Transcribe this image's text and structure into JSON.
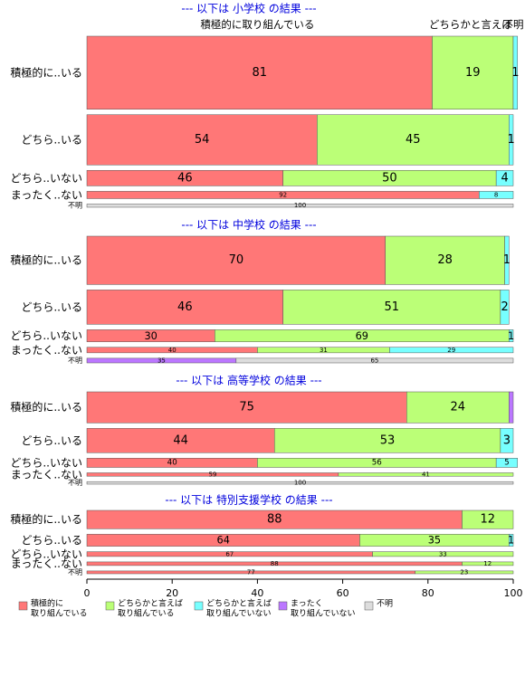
{
  "chart_data": {
    "type": "bar",
    "orientation": "horizontal",
    "stacked": true,
    "xlim": [
      0,
      100
    ],
    "x_ticks": [
      "0",
      "20",
      "40",
      "60",
      "80",
      "100"
    ],
    "top_labels": [
      {
        "text": "積極的に取り組んでいる",
        "x": 40
      },
      {
        "text": "どちらかと言えば",
        "x": 90
      },
      {
        "text": "不明",
        "x": 100
      }
    ],
    "legend": {
      "position": "bottom-left",
      "items": [
        {
          "line1": "積極的に",
          "line2": "取り組んでいる",
          "color": "#ff7777"
        },
        {
          "line1": "どちらかと言えば",
          "line2": "取り組んでいる",
          "color": "#bbff77"
        },
        {
          "line1": "どちらかと言えば",
          "line2": "取り組んでいない",
          "color": "#77ffff"
        },
        {
          "line1": "まったく",
          "line2": "取り組んでいない",
          "color": "#bb77ff"
        },
        {
          "line1": "不明",
          "line2": "",
          "color": "#dddddd"
        }
      ]
    },
    "panels": [
      {
        "title": "--- 以下は 小学校 の結果 ---",
        "rows": [
          {
            "label": "積極的に..いる",
            "values": [
              81,
              19,
              1,
              0,
              0
            ],
            "shown": [
              "81",
              "19",
              "1",
              "",
              ""
            ],
            "weight": 8
          },
          {
            "label": "どちら..いる",
            "values": [
              54,
              45,
              1,
              0,
              0
            ],
            "shown": [
              "54",
              "45",
              "1",
              "",
              ""
            ],
            "weight": 5.5
          },
          {
            "label": "どちら..いない",
            "values": [
              46,
              50,
              4,
              0,
              0
            ],
            "shown": [
              "46",
              "50",
              "4",
              "",
              ""
            ],
            "weight": 1.7
          },
          {
            "label": "まったく..ない",
            "values": [
              92,
              0,
              8,
              0,
              0
            ],
            "shown": [
              "92",
              "",
              "8",
              "",
              ""
            ],
            "weight": 0.8
          },
          {
            "label": "不明",
            "values": [
              0,
              0,
              0,
              0,
              100
            ],
            "shown": [
              "",
              "",
              "",
              "",
              "100"
            ],
            "weight": 0.35
          }
        ]
      },
      {
        "title": "--- 以下は 中学校 の結果 ---",
        "rows": [
          {
            "label": "積極的に..いる",
            "values": [
              70,
              28,
              1,
              0,
              0
            ],
            "shown": [
              "70",
              "28",
              "1",
              "",
              ""
            ],
            "weight": 5.2
          },
          {
            "label": "どちら..いる",
            "values": [
              46,
              51,
              2,
              0,
              0
            ],
            "shown": [
              "46",
              "51",
              "2",
              "",
              ""
            ],
            "weight": 3.7
          },
          {
            "label": "どちら..いない",
            "values": [
              30,
              69,
              1,
              0,
              0
            ],
            "shown": [
              "30",
              "69",
              "1",
              "",
              ""
            ],
            "weight": 1.3
          },
          {
            "label": "まったく..ない",
            "values": [
              40,
              31,
              29,
              0,
              0
            ],
            "shown": [
              "40",
              "31",
              "29",
              "",
              ""
            ],
            "weight": 0.6
          },
          {
            "label": "不明",
            "values": [
              0,
              0,
              0,
              35,
              65
            ],
            "shown": [
              "",
              "",
              "",
              "35",
              "65"
            ],
            "weight": 0.5
          }
        ]
      },
      {
        "title": "--- 以下は 高等学校 の結果 ---",
        "rows": [
          {
            "label": "積極的に..いる",
            "values": [
              75,
              24,
              0,
              1,
              0
            ],
            "shown": [
              "75",
              "24",
              "",
              "",
              ""
            ],
            "weight": 3.7
          },
          {
            "label": "どちら..いる",
            "values": [
              44,
              53,
              3,
              0,
              0
            ],
            "shown": [
              "44",
              "53",
              "3",
              "",
              ""
            ],
            "weight": 2.9
          },
          {
            "label": "どちら..いない",
            "values": [
              40,
              56,
              5,
              0,
              0
            ],
            "shown": [
              "40",
              "56",
              "5",
              "",
              ""
            ],
            "weight": 1.1
          },
          {
            "label": "まったく..ない",
            "values": [
              59,
              41,
              0,
              0,
              0
            ],
            "shown": [
              "59",
              "41",
              "",
              "",
              ""
            ],
            "weight": 0.4
          },
          {
            "label": "不明",
            "values": [
              0,
              0,
              0,
              0,
              100
            ],
            "shown": [
              "",
              "",
              "",
              "",
              "100"
            ],
            "weight": 0.3
          }
        ]
      },
      {
        "title": "--- 以下は 特別支援学校 の結果 ---",
        "rows": [
          {
            "label": "積極的に..いる",
            "values": [
              88,
              12,
              0,
              0,
              0
            ],
            "shown": [
              "88",
              "12",
              "",
              "",
              ""
            ],
            "weight": 2.3
          },
          {
            "label": "どちら..いる",
            "values": [
              64,
              35,
              1,
              0,
              0
            ],
            "shown": [
              "64",
              "35",
              "1",
              "",
              ""
            ],
            "weight": 1.5
          },
          {
            "label": "どちら..いない",
            "values": [
              67,
              33,
              0,
              0,
              0
            ],
            "shown": [
              "67",
              "33",
              "",
              "",
              ""
            ],
            "weight": 0.6
          },
          {
            "label": "まったく..ない",
            "values": [
              88,
              12,
              0,
              0,
              0
            ],
            "shown": [
              "88",
              "12",
              "",
              "",
              ""
            ],
            "weight": 0.45
          },
          {
            "label": "不明",
            "values": [
              77,
              23,
              0,
              0,
              0
            ],
            "shown": [
              "77",
              "23",
              "",
              "",
              ""
            ],
            "weight": 0.35
          }
        ]
      }
    ]
  }
}
